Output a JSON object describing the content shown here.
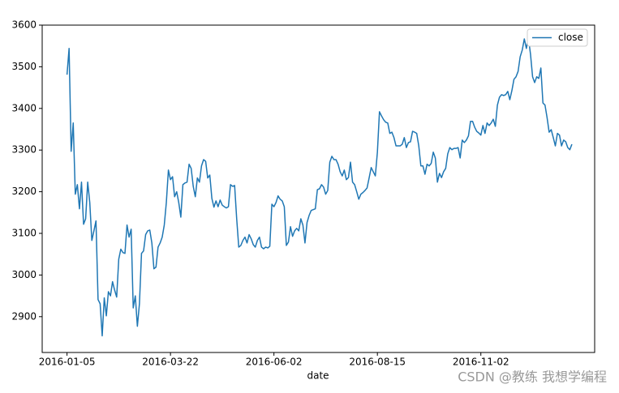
{
  "chart_data": {
    "type": "line",
    "x_label": "date",
    "watermark": "CSDN @教练 我想学编程",
    "categories": [
      "2016-01-05",
      null,
      null,
      null,
      null,
      null,
      null,
      null,
      null,
      null,
      null,
      null,
      null,
      null,
      null,
      null,
      null,
      null,
      null,
      null,
      null,
      null,
      null,
      null,
      null,
      null,
      null,
      null,
      null,
      null,
      null,
      null,
      null,
      null,
      null,
      null,
      null,
      null,
      null,
      null,
      null,
      null,
      null,
      null,
      null,
      null,
      null,
      null,
      null,
      null,
      "2016-03-22",
      null,
      null,
      null,
      null,
      null,
      null,
      null,
      null,
      null,
      null,
      null,
      null,
      null,
      null,
      null,
      null,
      null,
      null,
      null,
      null,
      null,
      null,
      null,
      null,
      null,
      null,
      null,
      null,
      null,
      null,
      null,
      null,
      null,
      null,
      null,
      null,
      null,
      null,
      null,
      null,
      null,
      null,
      null,
      null,
      null,
      null,
      null,
      null,
      null,
      "2016-06-02",
      null,
      null,
      null,
      null,
      null,
      null,
      null,
      null,
      null,
      null,
      null,
      null,
      null,
      null,
      null,
      null,
      null,
      null,
      null,
      null,
      null,
      null,
      null,
      null,
      null,
      null,
      null,
      null,
      null,
      null,
      null,
      null,
      null,
      null,
      null,
      null,
      null,
      null,
      null,
      null,
      null,
      null,
      null,
      null,
      null,
      null,
      null,
      null,
      null,
      "2016-08-15",
      null,
      null,
      null,
      null,
      null,
      null,
      null,
      null,
      null,
      null,
      null,
      null,
      null,
      null,
      null,
      null,
      null,
      null,
      null,
      null,
      null,
      null,
      null,
      null,
      null,
      null,
      null,
      null,
      null,
      null,
      null,
      null,
      null,
      null,
      null,
      null,
      null,
      null,
      null,
      null,
      null,
      null,
      null,
      null,
      null,
      null,
      null,
      null,
      null,
      "2016-11-02",
      null,
      null,
      null,
      null,
      null,
      null,
      null,
      null,
      null,
      null,
      null,
      null,
      null,
      null,
      null,
      null,
      null,
      null,
      null,
      null,
      null,
      null,
      null,
      null,
      null,
      null,
      null,
      null,
      null,
      null,
      null,
      null,
      null,
      null,
      null,
      null,
      null,
      null,
      null,
      null,
      null,
      null,
      null,
      null
    ],
    "series": [
      {
        "name": "close",
        "color": "#1f77b4",
        "values": [
          3481,
          3544,
          3297,
          3365,
          3194,
          3217,
          3159,
          3223,
          3122,
          3135,
          3223,
          3174,
          3083,
          3106,
          3130,
          2941,
          2931,
          2854,
          2945,
          2902,
          2960,
          2950,
          2984,
          2964,
          2947,
          3038,
          3062,
          3054,
          3052,
          3120,
          3091,
          3110,
          2921,
          2950,
          2877,
          2931,
          3052,
          3058,
          3097,
          3106,
          3108,
          3077,
          3015,
          3019,
          3067,
          3077,
          3091,
          3120,
          3174,
          3252,
          3229,
          3236,
          3188,
          3200,
          3174,
          3139,
          3217,
          3221,
          3223,
          3266,
          3256,
          3213,
          3188,
          3233,
          3223,
          3262,
          3277,
          3273,
          3233,
          3240,
          3184,
          3163,
          3178,
          3164,
          3180,
          3168,
          3164,
          3161,
          3164,
          3217,
          3213,
          3215,
          3135,
          3067,
          3071,
          3083,
          3091,
          3077,
          3097,
          3087,
          3073,
          3067,
          3083,
          3091,
          3067,
          3063,
          3067,
          3065,
          3069,
          3170,
          3164,
          3174,
          3190,
          3182,
          3178,
          3164,
          3071,
          3079,
          3116,
          3093,
          3106,
          3112,
          3106,
          3135,
          3120,
          3077,
          3126,
          3143,
          3155,
          3157,
          3159,
          3205,
          3207,
          3217,
          3211,
          3194,
          3203,
          3271,
          3285,
          3277,
          3277,
          3266,
          3248,
          3238,
          3252,
          3229,
          3234,
          3271,
          3223,
          3217,
          3200,
          3182,
          3194,
          3198,
          3203,
          3209,
          3233,
          3258,
          3248,
          3238,
          3295,
          3392,
          3382,
          3373,
          3367,
          3365,
          3340,
          3343,
          3330,
          3310,
          3310,
          3310,
          3314,
          3330,
          3306,
          3318,
          3320,
          3345,
          3343,
          3340,
          3310,
          3262,
          3262,
          3242,
          3266,
          3262,
          3268,
          3295,
          3281,
          3223,
          3244,
          3234,
          3248,
          3256,
          3291,
          3306,
          3301,
          3304,
          3304,
          3306,
          3281,
          3324,
          3318,
          3324,
          3334,
          3369,
          3369,
          3355,
          3345,
          3341,
          3336,
          3359,
          3340,
          3365,
          3359,
          3365,
          3374,
          3357,
          3408,
          3427,
          3433,
          3431,
          3433,
          3441,
          3421,
          3443,
          3470,
          3476,
          3489,
          3524,
          3540,
          3567,
          3544,
          3569,
          3530,
          3476,
          3462,
          3476,
          3472,
          3497,
          3413,
          3408,
          3378,
          3343,
          3349,
          3330,
          3310,
          3340,
          3336,
          3310,
          3324,
          3320,
          3306,
          3301,
          3314
        ]
      }
    ],
    "xlim": [
      -12,
      255
    ],
    "ylim": [
      2814,
      3600
    ],
    "yticks": [
      2900,
      3000,
      3100,
      3200,
      3300,
      3400,
      3500,
      3600
    ],
    "legend": "upper right"
  }
}
